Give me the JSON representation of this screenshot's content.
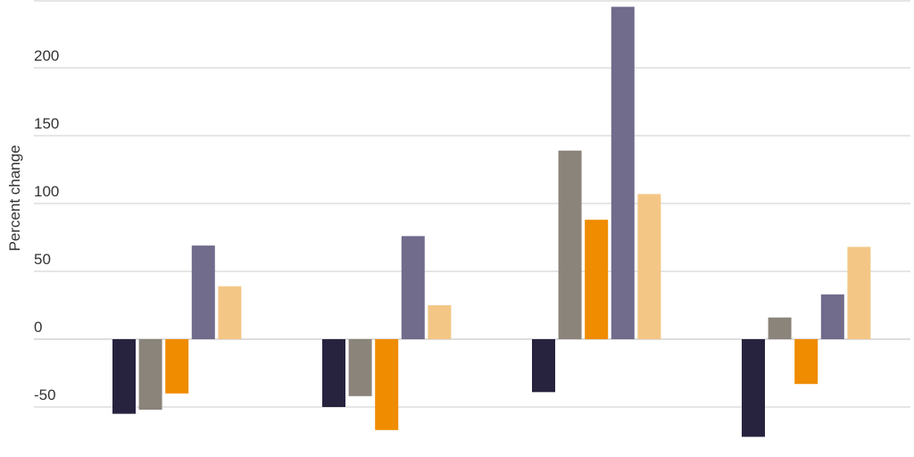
{
  "chart_data": {
    "type": "bar",
    "title": "",
    "xlabel": "",
    "ylabel": "Percent change",
    "ylim": [
      -85,
      250
    ],
    "y_ticks": [
      -50,
      0,
      50,
      100,
      150,
      200
    ],
    "grid": true,
    "legend": "none",
    "categories": [
      "",
      "",
      "",
      ""
    ],
    "series": [
      {
        "color": "#27233f",
        "values": [
          -55,
          -50,
          -39,
          -72
        ]
      },
      {
        "color": "#8a847b",
        "values": [
          -52,
          -42,
          139,
          16
        ]
      },
      {
        "color": "#ef8c00",
        "values": [
          -40,
          -67,
          88,
          -33
        ]
      },
      {
        "color": "#716b8c",
        "values": [
          69,
          76,
          245,
          33
        ]
      },
      {
        "color": "#f4c686",
        "values": [
          39,
          25,
          107,
          68
        ]
      }
    ]
  }
}
